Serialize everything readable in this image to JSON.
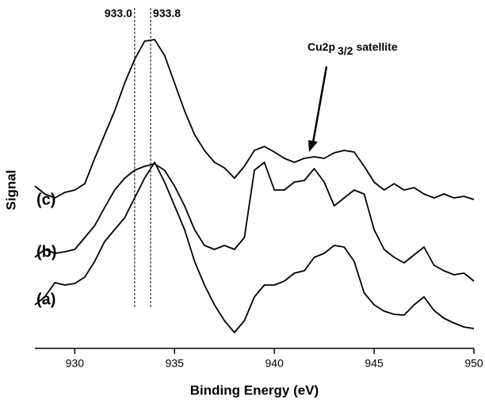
{
  "chart_data": {
    "type": "line",
    "xlabel": "Binding Energy (eV)",
    "ylabel": "Signal",
    "x": [
      928,
      928.5,
      929,
      929.5,
      930,
      930.5,
      931,
      931.5,
      932,
      932.5,
      933,
      933.5,
      934,
      934.5,
      935,
      935.5,
      936,
      936.5,
      937,
      937.5,
      938,
      938.5,
      939,
      939.5,
      940,
      940.5,
      941,
      941.5,
      942,
      942.5,
      943,
      943.5,
      944,
      944.5,
      945,
      945.5,
      946,
      946.5,
      947,
      947.5,
      948,
      948.5,
      949,
      949.5,
      950
    ],
    "series": [
      {
        "name": "(c)",
        "color": "#000000",
        "values": [
          205,
          195,
          190,
          197,
          200,
          208,
          240,
          270,
          300,
          335,
          365,
          388,
          390,
          370,
          335,
          300,
          270,
          250,
          235,
          228,
          215,
          230,
          250,
          255,
          248,
          240,
          235,
          240,
          242,
          240,
          247,
          250,
          248,
          230,
          210,
          200,
          208,
          200,
          203,
          195,
          190,
          195,
          190,
          192,
          188
        ]
      },
      {
        "name": "(b)",
        "color": "#000000",
        "values": [
          115,
          125,
          120,
          122,
          125,
          140,
          155,
          178,
          200,
          215,
          225,
          230,
          233,
          225,
          205,
          180,
          150,
          130,
          125,
          130,
          125,
          140,
          225,
          235,
          200,
          200,
          210,
          212,
          227,
          210,
          180,
          190,
          200,
          195,
          150,
          125,
          115,
          108,
          118,
          128,
          105,
          98,
          93,
          95,
          85
        ]
      },
      {
        "name": "(a)",
        "color": "#000000",
        "values": [
          55,
          65,
          83,
          80,
          82,
          90,
          110,
          135,
          150,
          165,
          190,
          215,
          235,
          210,
          180,
          150,
          110,
          80,
          55,
          35,
          20,
          35,
          65,
          80,
          80,
          85,
          95,
          98,
          115,
          120,
          130,
          128,
          110,
          70,
          55,
          47,
          43,
          42,
          55,
          65,
          48,
          38,
          32,
          27,
          25
        ]
      }
    ],
    "xlim": [
      928,
      950
    ],
    "xticks": [
      930,
      935,
      940,
      945,
      950
    ],
    "ylim": [
      0,
      440
    ],
    "vlines": [
      {
        "value": 933.0,
        "label": "933.0"
      },
      {
        "value": 933.8,
        "label": "933.8"
      }
    ],
    "annotation": {
      "text": "Cu2p",
      "sub": "3/2",
      "text2": "satellite"
    }
  }
}
